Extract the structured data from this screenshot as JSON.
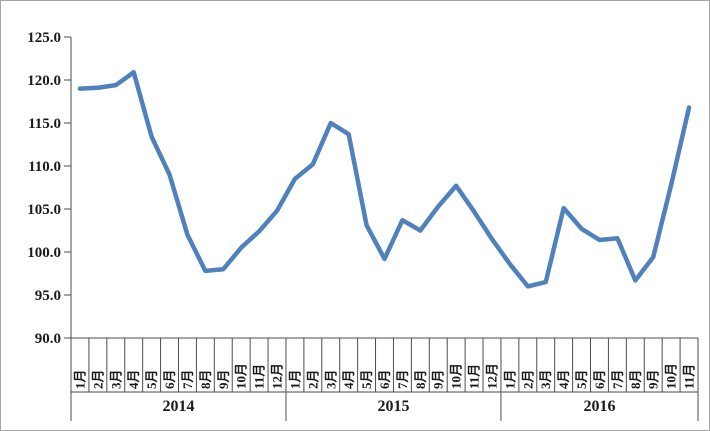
{
  "window": {
    "background": "#ffffff",
    "border_color": "#a6a6a6"
  },
  "chart_data": {
    "type": "line",
    "title": "",
    "grid": "off",
    "legend_position": "none",
    "line_color": "#4F81BD",
    "axis_color": "#4d4d4d",
    "y_axis": {
      "min": 90.0,
      "max": 125.0,
      "step": 5.0,
      "tick_labels": [
        "125.0",
        "120.0",
        "115.0",
        "110.0",
        "105.0",
        "100.0",
        "95.0",
        "90.0"
      ]
    },
    "x_axis": {
      "year_groups": [
        {
          "label": "2014",
          "months": [
            "1月",
            "2月",
            "3月",
            "4月",
            "5月",
            "6月",
            "7月",
            "8月",
            "9月",
            "10月",
            "11月",
            "12月"
          ]
        },
        {
          "label": "2015",
          "months": [
            "1月",
            "2月",
            "3月",
            "4月",
            "5月",
            "6月",
            "7月",
            "8月",
            "9月",
            "10月",
            "11月",
            "12月"
          ]
        },
        {
          "label": "2016",
          "months": [
            "1月",
            "2月",
            "3月",
            "4月",
            "5月",
            "6月",
            "7月",
            "8月",
            "9月",
            "10月",
            "11月"
          ]
        }
      ]
    },
    "series": [
      {
        "name": "",
        "color": "#4F81BD",
        "values": [
          119.0,
          119.1,
          119.4,
          120.9,
          113.4,
          109.0,
          102.0,
          97.8,
          98.0,
          100.5,
          102.4,
          104.8,
          108.5,
          110.2,
          115.0,
          113.7,
          103.1,
          99.2,
          103.7,
          102.5,
          105.3,
          107.7,
          104.7,
          101.5,
          98.6,
          96.0,
          96.5,
          105.1,
          102.7,
          101.4,
          101.6,
          96.7,
          99.4,
          107.8,
          116.8
        ]
      }
    ]
  }
}
